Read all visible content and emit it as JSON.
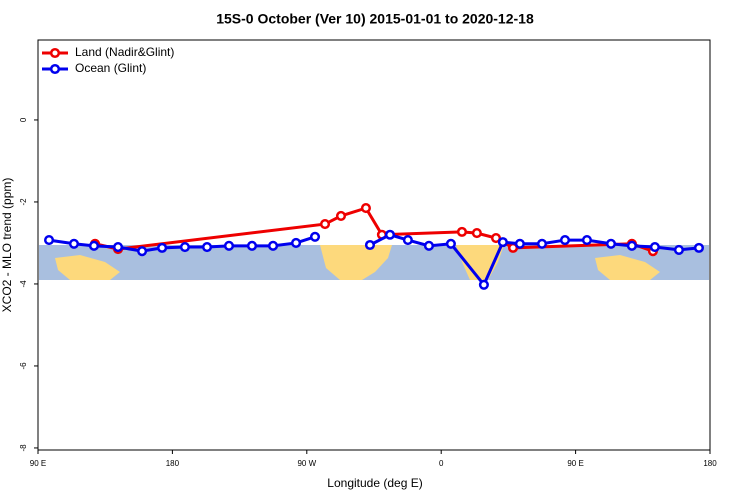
{
  "chart_data": {
    "type": "line",
    "title": "15S-0 October (Ver 10)   2015-01-01 to 2020-12-18",
    "x_label": "Longitude (deg E)",
    "y_label": "XCO2 - MLO trend (ppm)",
    "xlim": [
      90,
      540
    ],
    "ylim": [
      -8.05,
      1.95
    ],
    "xticks": [
      {
        "value": 90,
        "label": "90 E"
      },
      180,
      {
        "value": 270,
        "label": "90 W"
      },
      {
        "value": 360,
        "label": "0"
      },
      {
        "value": 450,
        "label": "90 E"
      },
      {
        "value": 540,
        "label": "180"
      }
    ],
    "yticks": [
      0,
      -2,
      -4,
      -6,
      -8
    ],
    "legend": "top-left",
    "series": [
      {
        "name": "Land (Nadir&Glint)",
        "color": "#ee0000",
        "x": [
          128.2,
          143.6,
          282.2,
          292.9,
          309.6,
          320.3,
          373.9,
          383.9,
          396.7,
          408.1,
          487.7,
          501.8
        ],
        "values": [
          -3.02,
          -3.15,
          -2.54,
          -2.34,
          -2.15,
          -2.8,
          -2.73,
          -2.76,
          -2.88,
          -3.12,
          -3.02,
          -3.2
        ]
      },
      {
        "name": "Ocean (Glint)",
        "color": "#0000ee",
        "x": [
          97.4,
          114.1,
          127.5,
          143.6,
          159.7,
          173.1,
          188.4,
          203.2,
          217.9,
          233.3,
          247.4,
          262.8,
          275.5,
          290,
          312.3,
          325.7,
          337.7,
          351.8,
          366.5,
          388.6,
          401.3,
          412.7,
          427.5,
          442.9,
          457.6,
          473.7,
          487.7,
          503.1,
          519.2,
          532.6
        ],
        "values": [
          -2.93,
          -3.02,
          -3.07,
          -3.1,
          -3.2,
          -3.12,
          -3.1,
          -3.1,
          -3.07,
          -3.07,
          -3.07,
          -3.0,
          -2.85,
          null,
          -3.05,
          -2.8,
          -2.93,
          -3.07,
          -3.02,
          -4.02,
          -2.98,
          -3.02,
          -3.02,
          -2.93,
          -2.93,
          -3.02,
          -3.07,
          -3.1,
          -3.17,
          -3.12
        ]
      }
    ]
  }
}
